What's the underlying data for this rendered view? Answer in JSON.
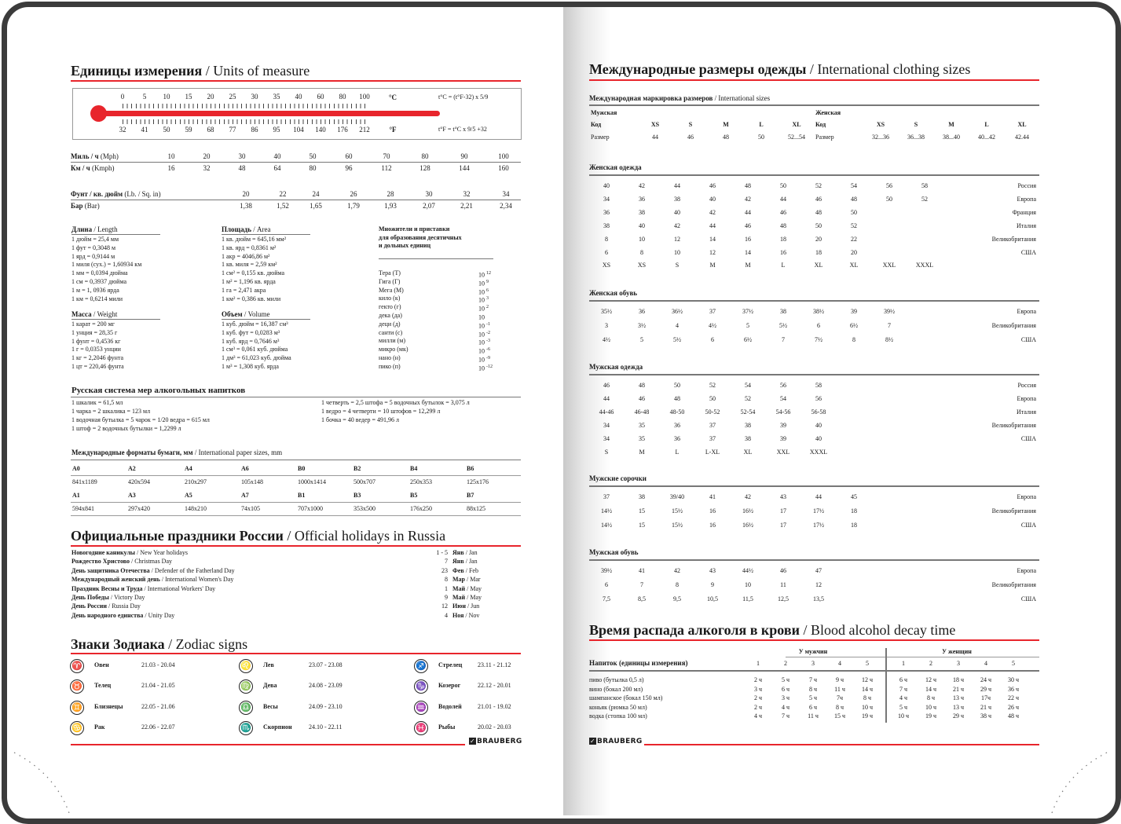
{
  "left": {
    "units": {
      "title_ru": "Единицы измерения",
      "title_en": "/ Units of measure",
      "thermo": {
        "celsius": [
          "0",
          "5",
          "10",
          "15",
          "20",
          "25",
          "30",
          "35",
          "40",
          "60",
          "80",
          "100"
        ],
        "c_unit": "°C",
        "fahrenheit": [
          "32",
          "41",
          "50",
          "59",
          "68",
          "77",
          "86",
          "95",
          "104",
          "140",
          "176",
          "212"
        ],
        "f_unit": "°F",
        "formula_c": "t°C = (t°F-32) x 5/9",
        "formula_f": "t°F = t°C x 9/5 +32",
        "bar_color": "#e8252c"
      },
      "speed": {
        "mph_ru": "Миль / ч",
        "mph_en": "(Mph)",
        "mph": [
          "10",
          "20",
          "30",
          "40",
          "50",
          "60",
          "70",
          "80",
          "90",
          "100"
        ],
        "kmh_ru": "Км / ч",
        "kmh_en": "(Kmph)",
        "kmh": [
          "16",
          "32",
          "48",
          "64",
          "80",
          "96",
          "112",
          "128",
          "144",
          "160"
        ]
      },
      "pressure": {
        "psi_ru": "Фунт / кв. дюйм",
        "psi_en": "(Lb. / Sq. in)",
        "psi": [
          "20",
          "22",
          "24",
          "26",
          "28",
          "30",
          "32",
          "34"
        ],
        "bar_ru": "Бар",
        "bar_en": "(Bar)",
        "bar": [
          "1,38",
          "1,52",
          "1,65",
          "1,79",
          "1,93",
          "2,07",
          "2,21",
          "2,34"
        ]
      },
      "length": {
        "title_ru": "Длина",
        "title_en": "/ Length",
        "items": [
          "1 дюйм = 25,4 мм",
          "1 фут = 0,3048 м",
          "1 ярд = 0,9144 м",
          "1 миля (сух.) = 1,60934 км",
          "1 мм = 0,0394 дюйма",
          "1 см = 0,3937 дюйма",
          "1 м = 1, 0936 ярда",
          "1 км = 0,6214 мили"
        ]
      },
      "area": {
        "title_ru": "Площадь",
        "title_en": "/ Area",
        "items": [
          "1 кв. дюйм = 645,16 мм²",
          "1 кв. ярд = 0,8361 м²",
          "1 акр = 4046,86 м²",
          "1 кв. миля = 2,59 км²",
          "1 см² = 0,155 кв. дюйма",
          "1 м² = 1,196 кв. ярда",
          "1 га = 2,471 акра",
          "1 км² = 0,386 кв. мили"
        ]
      },
      "weight": {
        "title_ru": "Масса",
        "title_en": "/ Weight",
        "items": [
          "1 карат = 200 мг",
          "1 унция = 28,35 г",
          "1 фунт = 0,4536 кг",
          "1 г = 0,0353 унции",
          "1 кг = 2,2046 фунта",
          "1 цт = 220,46 фунта"
        ]
      },
      "volume": {
        "title_ru": "Объем",
        "title_en": "/ Volume",
        "items": [
          "1 куб. дюйм = 16,387 см³",
          "1 куб. фут = 0,0283 м³",
          "1 куб. ярд = 0,7646 м³",
          "1 см³ = 0,061 куб. дюйма",
          "1 дм³ = 61,023 куб. дюйма",
          "1 м³ = 1,308 куб. ярда"
        ]
      },
      "prefixes": {
        "title": [
          "Множители и приставки",
          "для образования десятичных",
          "и дольных единиц"
        ],
        "items": [
          {
            "name": "Тера (Т)",
            "base": "10",
            "exp": "12"
          },
          {
            "name": "Гига (Г)",
            "base": "10",
            "exp": "9"
          },
          {
            "name": "Мега (М)",
            "base": "10",
            "exp": "6"
          },
          {
            "name": "кило (к)",
            "base": "10",
            "exp": "3"
          },
          {
            "name": "гекто (г)",
            "base": "10",
            "exp": "2"
          },
          {
            "name": "дека (да)",
            "base": "10",
            "exp": ""
          },
          {
            "name": "деци (д)",
            "base": "10",
            "exp": "-1"
          },
          {
            "name": "санти (с)",
            "base": "10",
            "exp": "-2"
          },
          {
            "name": "милли (м)",
            "base": "10",
            "exp": "-3"
          },
          {
            "name": "микро (мк)",
            "base": "10",
            "exp": "-6"
          },
          {
            "name": "нано (н)",
            "base": "10",
            "exp": "-9"
          },
          {
            "name": "пико (п)",
            "base": "10",
            "exp": "-12"
          }
        ]
      }
    },
    "alcohol_measures": {
      "title": "Русская система мер алкогольных напитков",
      "left": [
        "1 шкалик = 61,5 мл",
        "1 чарка = 2 шкалика = 123 мл",
        "1 водочная бутылка = 5 чарок = 1/20 ведра = 615 мл",
        "1 штоф = 2 водочных бутылки = 1,2299 л"
      ],
      "right": [
        "1 четверть = 2,5 штофа = 5 водочных бутылок = 3,075 л",
        "1 ведро = 4 четверти = 10 штофов = 12,299 л",
        "1 бочка = 40 ведер = 491,96 л"
      ]
    },
    "paper": {
      "title_ru": "Международные форматы бумаги, мм",
      "title_en": "/ International paper sizes, mm",
      "rows": [
        [
          {
            "name": "A0",
            "size": "841x1189"
          },
          {
            "name": "A2",
            "size": "420x594"
          },
          {
            "name": "A4",
            "size": "210x297"
          },
          {
            "name": "A6",
            "size": "105x148"
          },
          {
            "name": "B0",
            "size": "1000x1414"
          },
          {
            "name": "B2",
            "size": "500x707"
          },
          {
            "name": "B4",
            "size": "250x353"
          },
          {
            "name": "B6",
            "size": "125x176"
          }
        ],
        [
          {
            "name": "A1",
            "size": "594x841"
          },
          {
            "name": "A3",
            "size": "297x420"
          },
          {
            "name": "A5",
            "size": "148x210"
          },
          {
            "name": "A7",
            "size": "74x105"
          },
          {
            "name": "B1",
            "size": "707x1000"
          },
          {
            "name": "B3",
            "size": "353x500"
          },
          {
            "name": "B5",
            "size": "176x250"
          },
          {
            "name": "B7",
            "size": "88x125"
          }
        ]
      ]
    },
    "holidays": {
      "title_ru": "Официальные праздники России",
      "title_en": "/ Official holidays in Russia",
      "items": [
        {
          "ru": "Новогодние каникулы",
          "en": "/ New Year holidays",
          "day": "1 - 5",
          "month_ru": "Янв",
          "month_en": "/ Jan"
        },
        {
          "ru": "Рождество Христово",
          "en": "/ Christmas Day",
          "day": "7",
          "month_ru": "Янв",
          "month_en": "/ Jan"
        },
        {
          "ru": "День защитника Отечества",
          "en": "/ Defender of the Fatherland Day",
          "day": "23",
          "month_ru": "Фев",
          "month_en": "/ Feb"
        },
        {
          "ru": "Международный женский день",
          "en": "/ International Women's Day",
          "day": "8",
          "month_ru": "Мар",
          "month_en": "/ Mar"
        },
        {
          "ru": "Праздник Весны и Труда",
          "en": "/ International Workers' Day",
          "day": "1",
          "month_ru": "Май",
          "month_en": "/ May"
        },
        {
          "ru": "День Победы",
          "en": "/ Victory Day",
          "day": "9",
          "month_ru": "Май",
          "month_en": "/ May"
        },
        {
          "ru": "День России",
          "en": "/ Russia Day",
          "day": "12",
          "month_ru": "Июн",
          "month_en": "/ Jun"
        },
        {
          "ru": "День народного единства",
          "en": "/ Unity Day",
          "day": "4",
          "month_ru": "Ноя",
          "month_en": "/ Nov"
        }
      ]
    },
    "zodiac": {
      "title_ru": "Знаки Зодиака",
      "title_en": "/ Zodiac signs",
      "signs": [
        {
          "name": "Овен",
          "dates": "21.03 - 20.04",
          "icon": "aries-icon",
          "glyph": "♈"
        },
        {
          "name": "Телец",
          "dates": "21.04 - 21.05",
          "icon": "taurus-icon",
          "glyph": "♉"
        },
        {
          "name": "Близнецы",
          "dates": "22.05 - 21.06",
          "icon": "gemini-icon",
          "glyph": "♊"
        },
        {
          "name": "Рак",
          "dates": "22.06 - 22.07",
          "icon": "cancer-icon",
          "glyph": "♋"
        },
        {
          "name": "Лев",
          "dates": "23.07 - 23.08",
          "icon": "leo-icon",
          "glyph": "♌"
        },
        {
          "name": "Дева",
          "dates": "24.08 - 23.09",
          "icon": "virgo-icon",
          "glyph": "♍"
        },
        {
          "name": "Весы",
          "dates": "24.09 - 23.10",
          "icon": "libra-icon",
          "glyph": "♎"
        },
        {
          "name": "Скорпион",
          "dates": "24.10 - 22.11",
          "icon": "scorpio-icon",
          "glyph": "♏"
        },
        {
          "name": "Стрелец",
          "dates": "23.11 - 21.12",
          "icon": "sagittarius-icon",
          "glyph": "♐"
        },
        {
          "name": "Козерог",
          "dates": "22.12 - 20.01",
          "icon": "capricorn-icon",
          "glyph": "♑"
        },
        {
          "name": "Водолей",
          "dates": "21.01 - 19.02",
          "icon": "aquarius-icon",
          "glyph": "♒"
        },
        {
          "name": "Рыбы",
          "dates": "20.02 - 20.03",
          "icon": "pisces-icon",
          "glyph": "♓"
        }
      ]
    },
    "brand": "BRAUBERG"
  },
  "right": {
    "clothing": {
      "title_ru": "Международные размеры одежды",
      "title_en": "/ International clothing sizes",
      "intl": {
        "title_ru": "Международная маркировка размеров",
        "title_en": "/ International sizes",
        "men": {
          "label": "Мужская",
          "code_label": "Код",
          "codes": [
            "XS",
            "S",
            "M",
            "L",
            "XL"
          ],
          "size_label": "Размер",
          "sizes": [
            "44",
            "46",
            "48",
            "50",
            "52...54"
          ]
        },
        "women": {
          "label": "Женская",
          "code_label": "Код",
          "codes": [
            "XS",
            "S",
            "M",
            "L",
            "XL"
          ],
          "size_label": "Размер",
          "sizes": [
            "32...36",
            "36...38",
            "38...40",
            "40...42",
            "42.44"
          ]
        }
      },
      "tables": [
        {
          "title": "Женская одежда",
          "rows": [
            {
              "values": [
                "40",
                "42",
                "44",
                "46",
                "48",
                "50",
                "52",
                "54",
                "56",
                "58"
              ],
              "label": "Россия"
            },
            {
              "values": [
                "34",
                "36",
                "38",
                "40",
                "42",
                "44",
                "46",
                "48",
                "50",
                "52"
              ],
              "label": "Европа"
            },
            {
              "values": [
                "36",
                "38",
                "40",
                "42",
                "44",
                "46",
                "48",
                "50"
              ],
              "label": "Франция"
            },
            {
              "values": [
                "38",
                "40",
                "42",
                "44",
                "46",
                "48",
                "50",
                "52"
              ],
              "label": "Италия"
            },
            {
              "values": [
                "8",
                "10",
                "12",
                "14",
                "16",
                "18",
                "20",
                "22"
              ],
              "label": "Великобритания"
            },
            {
              "values": [
                "6",
                "8",
                "10",
                "12",
                "14",
                "16",
                "18",
                "20"
              ],
              "label": "США"
            },
            {
              "values": [
                "XS",
                "XS",
                "S",
                "M",
                "M",
                "L",
                "XL",
                "XL",
                "XXL",
                "XXXL"
              ],
              "label": ""
            }
          ]
        },
        {
          "title": "Женская обувь",
          "rows": [
            {
              "values": [
                "35½",
                "36",
                "36½",
                "37",
                "37½",
                "38",
                "38½",
                "39",
                "39½"
              ],
              "label": "Европа"
            },
            {
              "values": [
                "3",
                "3½",
                "4",
                "4½",
                "5",
                "5½",
                "6",
                "6½",
                "7"
              ],
              "label": "Великобритания"
            },
            {
              "values": [
                "4½",
                "5",
                "5½",
                "6",
                "6½",
                "7",
                "7½",
                "8",
                "8½"
              ],
              "label": "США"
            }
          ]
        },
        {
          "title": "Мужская одежда",
          "rows": [
            {
              "values": [
                "46",
                "48",
                "50",
                "52",
                "54",
                "56",
                "58"
              ],
              "label": "Россия"
            },
            {
              "values": [
                "44",
                "46",
                "48",
                "50",
                "52",
                "54",
                "56"
              ],
              "label": "Европа"
            },
            {
              "values": [
                "44-46",
                "46-48",
                "48-50",
                "50-52",
                "52-54",
                "54-56",
                "56-58"
              ],
              "label": "Италия"
            },
            {
              "values": [
                "34",
                "35",
                "36",
                "37",
                "38",
                "39",
                "40"
              ],
              "label": "Великобритания"
            },
            {
              "values": [
                "34",
                "35",
                "36",
                "37",
                "38",
                "39",
                "40"
              ],
              "label": "США"
            },
            {
              "values": [
                "S",
                "M",
                "L",
                "L-XL",
                "XL",
                "XXL",
                "XXXL"
              ],
              "label": ""
            }
          ]
        },
        {
          "title": "Мужские сорочки",
          "rows": [
            {
              "values": [
                "37",
                "38",
                "39/40",
                "41",
                "42",
                "43",
                "44",
                "45"
              ],
              "label": "Европа"
            },
            {
              "values": [
                "14½",
                "15",
                "15½",
                "16",
                "16½",
                "17",
                "17½",
                "18"
              ],
              "label": "Великобритания"
            },
            {
              "values": [
                "14½",
                "15",
                "15½",
                "16",
                "16½",
                "17",
                "17½",
                "18"
              ],
              "label": "США"
            }
          ]
        },
        {
          "title": "Мужская обувь",
          "rows": [
            {
              "values": [
                "39½",
                "41",
                "42",
                "43",
                "44½",
                "46",
                "47"
              ],
              "label": "Европа"
            },
            {
              "values": [
                "6",
                "7",
                "8",
                "9",
                "10",
                "11",
                "12"
              ],
              "label": "Великобритания"
            },
            {
              "values": [
                "7,5",
                "8,5",
                "9,5",
                "10,5",
                "11,5",
                "12,5",
                "13,5"
              ],
              "label": "США"
            }
          ]
        }
      ]
    },
    "alcohol_decay": {
      "title_ru": "Время распада алкоголя в крови",
      "title_en": "/ Blood alcohol decay time",
      "men_header": "У мужчин",
      "women_header": "У женщин",
      "drink_header": "Напиток (единицы измерения)",
      "portions": [
        "1",
        "2",
        "3",
        "4",
        "5"
      ],
      "rows": [
        {
          "drink": "пиво (бутылка 0,5 л)",
          "men": [
            "2 ч",
            "5 ч",
            "7 ч",
            "9 ч",
            "12 ч"
          ],
          "women": [
            "6 ч",
            "12 ч",
            "18 ч",
            "24 ч",
            "30 ч"
          ]
        },
        {
          "drink": "вино (бокал 200 мл)",
          "men": [
            "3 ч",
            "6 ч",
            "8 ч",
            "11 ч",
            "14 ч"
          ],
          "women": [
            "7 ч",
            "14 ч",
            "21 ч",
            "29 ч",
            "36 ч"
          ]
        },
        {
          "drink": "шампанское (бокал 150 мл)",
          "men": [
            "2 ч",
            "3 ч",
            "5 ч",
            "7ч",
            "8 ч"
          ],
          "women": [
            "4 ч",
            "8 ч",
            "13 ч",
            "17ч",
            "22 ч"
          ]
        },
        {
          "drink": "коньяк (рюмка 50 мл)",
          "men": [
            "2 ч",
            "4 ч",
            "6 ч",
            "8 ч",
            "10 ч"
          ],
          "women": [
            "5 ч",
            "10 ч",
            "13 ч",
            "21 ч",
            "26 ч"
          ]
        },
        {
          "drink": "водка (стопка 100 мл)",
          "men": [
            "4 ч",
            "7 ч",
            "11 ч",
            "15 ч",
            "19 ч"
          ],
          "women": [
            "10 ч",
            "19 ч",
            "29 ч",
            "38 ч",
            "48 ч"
          ]
        }
      ]
    },
    "brand": "BRAUBERG"
  },
  "colors": {
    "accent_red": "#e8252c",
    "frame": "#3b3b3b",
    "rule_gray": "#777777"
  }
}
